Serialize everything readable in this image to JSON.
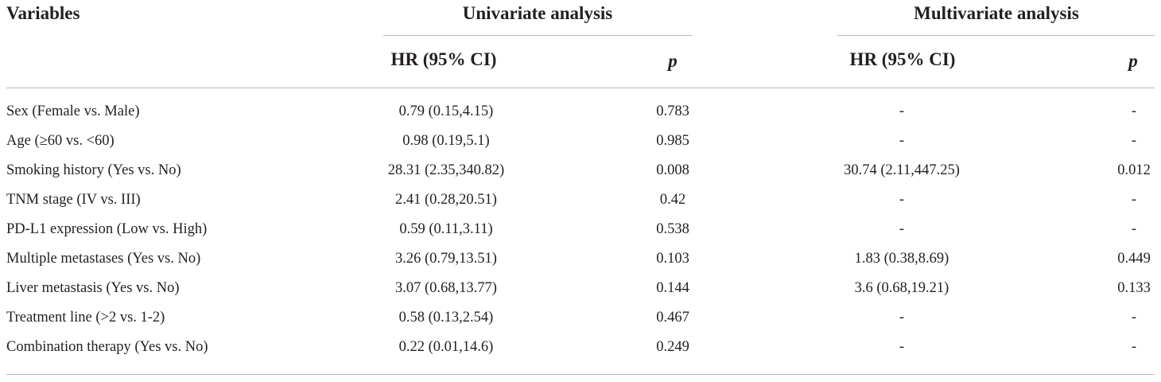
{
  "header": {
    "variables": "Variables",
    "univariate": "Univariate analysis",
    "multivariate": "Multivariate analysis",
    "hr_label": "HR (95% CI)",
    "p_label": "p"
  },
  "rows": [
    {
      "variable": "Sex (Female vs. Male)",
      "uni_hr": "0.79 (0.15,4.15)",
      "uni_p": "0.783",
      "multi_hr": "-",
      "multi_p": "-"
    },
    {
      "variable": "Age (≥60 vs. <60)",
      "uni_hr": "0.98 (0.19,5.1)",
      "uni_p": "0.985",
      "multi_hr": "-",
      "multi_p": "-"
    },
    {
      "variable": "Smoking history (Yes vs. No)",
      "uni_hr": "28.31 (2.35,340.82)",
      "uni_p": "0.008",
      "multi_hr": "30.74 (2.11,447.25)",
      "multi_p": "0.012"
    },
    {
      "variable": "TNM stage (IV vs. III)",
      "uni_hr": "2.41 (0.28,20.51)",
      "uni_p": "0.42",
      "multi_hr": "-",
      "multi_p": "-"
    },
    {
      "variable": "PD-L1 expression (Low vs. High)",
      "uni_hr": "0.59 (0.11,3.11)",
      "uni_p": "0.538",
      "multi_hr": "-",
      "multi_p": "-"
    },
    {
      "variable": "Multiple metastases (Yes vs. No)",
      "uni_hr": "3.26 (0.79,13.51)",
      "uni_p": "0.103",
      "multi_hr": "1.83 (0.38,8.69)",
      "multi_p": "0.449"
    },
    {
      "variable": "Liver metastasis (Yes vs. No)",
      "uni_hr": "3.07 (0.68,13.77)",
      "uni_p": "0.144",
      "multi_hr": "3.6 (0.68,19.21)",
      "multi_p": "0.133"
    },
    {
      "variable": "Treatment line (>2 vs. 1-2)",
      "uni_hr": "0.58 (0.13,2.54)",
      "uni_p": "0.467",
      "multi_hr": "-",
      "multi_p": "-"
    },
    {
      "variable": "Combination therapy (Yes vs. No)",
      "uni_hr": "0.22 (0.01,14.6)",
      "uni_p": "0.249",
      "multi_hr": "-",
      "multi_p": "-"
    }
  ]
}
